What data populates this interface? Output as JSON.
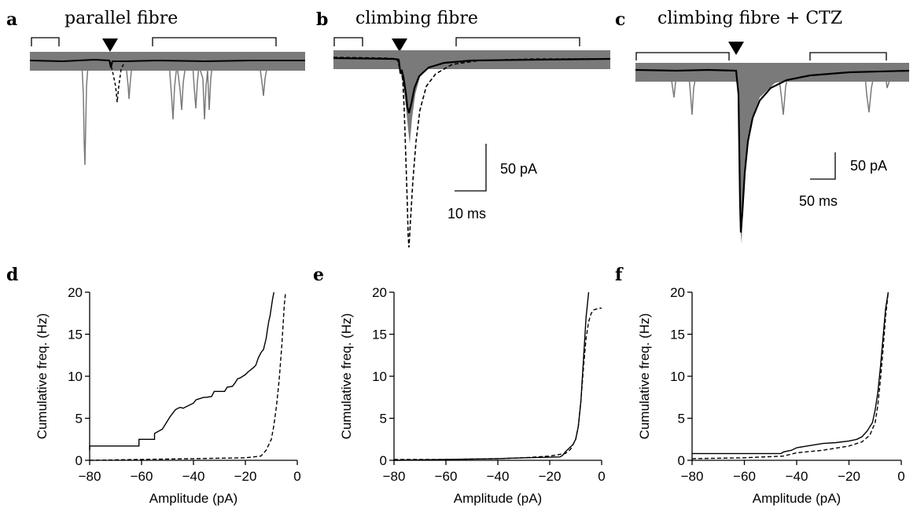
{
  "colors": {
    "trace_grey": "#7a7a7a",
    "mean_black": "#000000",
    "dashed": "#000000"
  },
  "panel_letters": [
    "a",
    "b",
    "c",
    "d",
    "e",
    "f"
  ],
  "trace_panels": [
    {
      "letter": "a",
      "title": "parallel fibre"
    },
    {
      "letter": "b",
      "title": "climbing fibre",
      "scale_amp": "50 pA",
      "scale_time": "10 ms"
    },
    {
      "letter": "c",
      "title": "climbing fibre + CTZ",
      "scale_amp": "50 pA",
      "scale_time": "50 ms"
    }
  ],
  "chart_data": [
    {
      "panel": "d",
      "type": "line",
      "xlabel": "Amplitude (pA)",
      "ylabel": "Cumulative freq. (Hz)",
      "xlim": [
        -80,
        0
      ],
      "ylim": [
        0,
        20
      ],
      "xticks": [
        -80,
        -60,
        -40,
        -20,
        0
      ],
      "yticks": [
        0,
        5,
        10,
        15,
        20
      ],
      "series": [
        {
          "style": "solid",
          "x": [
            -80,
            -80,
            -61,
            -61,
            -55,
            -55,
            -52,
            -51,
            -50,
            -49,
            -48,
            -47,
            -46,
            -45,
            -44,
            -40,
            -39,
            -36,
            -35,
            -33,
            -32,
            -28,
            -27,
            -25,
            -24,
            -23,
            -22,
            -20,
            -19,
            -17,
            -16,
            -15,
            -14,
            -13,
            -12,
            -11.5,
            -11,
            -10.5,
            -10,
            -9.5,
            -9
          ],
          "y": [
            1.2,
            1.7,
            1.7,
            2.5,
            2.5,
            3.2,
            3.7,
            4.2,
            4.7,
            5.2,
            5.6,
            6.0,
            6.2,
            6.3,
            6.2,
            6.8,
            7.2,
            7.5,
            7.5,
            7.6,
            8.2,
            8.2,
            8.7,
            8.8,
            9.2,
            9.7,
            9.8,
            10.2,
            10.5,
            11.0,
            11.3,
            12.2,
            12.8,
            13.2,
            14.5,
            15.5,
            16.5,
            17.2,
            18.2,
            19.2,
            20
          ]
        },
        {
          "style": "dashed",
          "x": [
            -80,
            -60,
            -40,
            -20,
            -14,
            -12,
            -10,
            -9,
            -8,
            -7,
            -6,
            -5.5,
            -5,
            -4.5
          ],
          "y": [
            0,
            0.1,
            0.2,
            0.3,
            0.5,
            1.2,
            2.5,
            4.2,
            6.5,
            9.5,
            13.5,
            16.0,
            18.5,
            20
          ]
        }
      ]
    },
    {
      "panel": "e",
      "type": "line",
      "xlabel": "Amplitude (pA)",
      "ylabel": "Cumulative freq. (Hz)",
      "xlim": [
        -80,
        0
      ],
      "ylim": [
        0,
        20
      ],
      "xticks": [
        -80,
        -60,
        -40,
        -20,
        0
      ],
      "yticks": [
        0,
        5,
        10,
        15,
        20
      ],
      "series": [
        {
          "style": "solid",
          "x": [
            -80,
            -60,
            -40,
            -30,
            -16,
            -15,
            -14,
            -13,
            -12,
            -11,
            -10,
            -9,
            -8,
            -7,
            -6,
            -5
          ],
          "y": [
            0,
            0.1,
            0.2,
            0.3,
            0.4,
            0.6,
            1.0,
            1.3,
            1.6,
            1.9,
            2.5,
            4.0,
            7.0,
            12.0,
            17.0,
            20
          ]
        },
        {
          "style": "dashed",
          "x": [
            -80,
            -60,
            -40,
            -30,
            -20,
            -14,
            -12,
            -10,
            -9,
            -8,
            -7,
            -6,
            -5,
            -4,
            -3,
            -2,
            -1,
            0
          ],
          "y": [
            0.1,
            0.1,
            0.2,
            0.3,
            0.5,
            0.8,
            1.3,
            2.5,
            4.0,
            7.0,
            11.0,
            14.5,
            16.5,
            17.5,
            17.9,
            18.0,
            18.1,
            18.1
          ]
        }
      ]
    },
    {
      "panel": "f",
      "type": "line",
      "xlabel": "Amplitude (pA)",
      "ylabel": "Cumulative freq. (Hz)",
      "xlim": [
        -80,
        0
      ],
      "ylim": [
        0,
        20
      ],
      "xticks": [
        -80,
        -60,
        -40,
        -20,
        0
      ],
      "yticks": [
        0,
        5,
        10,
        15,
        20
      ],
      "series": [
        {
          "style": "solid",
          "x": [
            -80,
            -46,
            -45,
            -42,
            -40,
            -36,
            -30,
            -25,
            -20,
            -17,
            -15,
            -13,
            -11,
            -10,
            -9,
            -8,
            -7,
            -6,
            -5
          ],
          "y": [
            0.8,
            0.8,
            1.0,
            1.2,
            1.5,
            1.7,
            2.0,
            2.1,
            2.3,
            2.5,
            2.8,
            3.5,
            4.5,
            6.0,
            8.0,
            11.0,
            14.5,
            18.0,
            20
          ]
        },
        {
          "style": "dashed",
          "x": [
            -80,
            -60,
            -45,
            -40,
            -30,
            -20,
            -15,
            -12,
            -10,
            -9,
            -8,
            -7,
            -6,
            -5
          ],
          "y": [
            0.2,
            0.3,
            0.5,
            0.9,
            1.2,
            1.7,
            2.2,
            3.0,
            4.5,
            6.5,
            9.5,
            13.0,
            17.0,
            20
          ]
        }
      ]
    }
  ]
}
